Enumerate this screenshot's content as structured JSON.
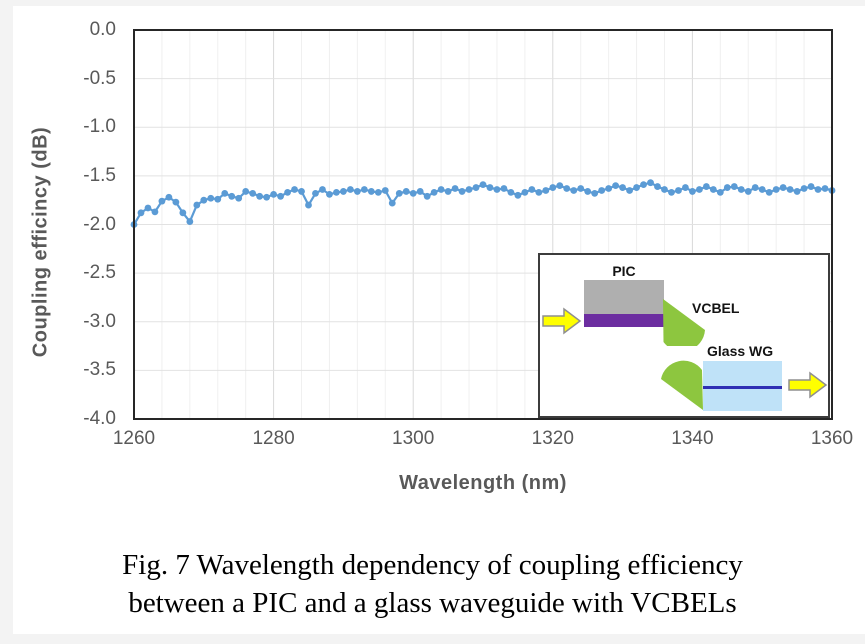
{
  "caption": {
    "line1": "Fig. 7 Wavelength dependency of coupling efficiency",
    "line2": "between a PIC and a glass waveguide with VCBELs"
  },
  "chart_data": {
    "type": "line",
    "title": "",
    "xlabel": "Wavelength (nm)",
    "ylabel": "Coupling efficincy (dB)",
    "xlim": [
      1260,
      1360
    ],
    "ylim": [
      -4.0,
      0.0
    ],
    "x_ticks": [
      1260,
      1280,
      1300,
      1320,
      1340,
      1360
    ],
    "y_ticks": [
      "0.0",
      "-0.5",
      "-1.0",
      "-1.5",
      "-2.0",
      "-2.5",
      "-3.0",
      "-3.5",
      "-4.0"
    ],
    "grid": {
      "horizontal_step": 0.5,
      "vertical_minor_step": 4,
      "vertical_major_step": 20,
      "on": true
    },
    "legend": "none",
    "marker_color": "#5B9BD5",
    "series": [
      {
        "name": "coupling efficiency",
        "x": [
          1260,
          1261,
          1262,
          1263,
          1264,
          1265,
          1266,
          1267,
          1268,
          1269,
          1270,
          1271,
          1272,
          1273,
          1274,
          1275,
          1276,
          1277,
          1278,
          1279,
          1280,
          1281,
          1282,
          1283,
          1284,
          1285,
          1286,
          1287,
          1288,
          1289,
          1290,
          1291,
          1292,
          1293,
          1294,
          1295,
          1296,
          1297,
          1298,
          1299,
          1300,
          1301,
          1302,
          1303,
          1304,
          1305,
          1306,
          1307,
          1308,
          1309,
          1310,
          1311,
          1312,
          1313,
          1314,
          1315,
          1316,
          1317,
          1318,
          1319,
          1320,
          1321,
          1322,
          1323,
          1324,
          1325,
          1326,
          1327,
          1328,
          1329,
          1330,
          1331,
          1332,
          1333,
          1334,
          1335,
          1336,
          1337,
          1338,
          1339,
          1340,
          1341,
          1342,
          1343,
          1344,
          1345,
          1346,
          1347,
          1348,
          1349,
          1350,
          1351,
          1352,
          1353,
          1354,
          1355,
          1356,
          1357,
          1358,
          1359,
          1360
        ],
        "y": [
          -2.0,
          -1.88,
          -1.83,
          -1.87,
          -1.76,
          -1.72,
          -1.77,
          -1.88,
          -1.97,
          -1.8,
          -1.75,
          -1.73,
          -1.74,
          -1.68,
          -1.71,
          -1.73,
          -1.66,
          -1.68,
          -1.71,
          -1.72,
          -1.69,
          -1.71,
          -1.67,
          -1.64,
          -1.66,
          -1.8,
          -1.68,
          -1.64,
          -1.69,
          -1.67,
          -1.66,
          -1.64,
          -1.66,
          -1.64,
          -1.66,
          -1.67,
          -1.65,
          -1.78,
          -1.68,
          -1.66,
          -1.68,
          -1.66,
          -1.71,
          -1.67,
          -1.64,
          -1.66,
          -1.63,
          -1.66,
          -1.64,
          -1.62,
          -1.59,
          -1.62,
          -1.64,
          -1.63,
          -1.67,
          -1.7,
          -1.67,
          -1.64,
          -1.67,
          -1.65,
          -1.62,
          -1.6,
          -1.63,
          -1.65,
          -1.63,
          -1.66,
          -1.68,
          -1.65,
          -1.63,
          -1.6,
          -1.62,
          -1.65,
          -1.62,
          -1.59,
          -1.57,
          -1.61,
          -1.64,
          -1.67,
          -1.65,
          -1.62,
          -1.66,
          -1.64,
          -1.61,
          -1.64,
          -1.67,
          -1.62,
          -1.61,
          -1.64,
          -1.66,
          -1.62,
          -1.64,
          -1.67,
          -1.64,
          -1.62,
          -1.64,
          -1.66,
          -1.63,
          -1.61,
          -1.64,
          -1.63,
          -1.65
        ]
      }
    ],
    "colors": {
      "series_blue": "#5B9BD5",
      "axis_text": "#595959",
      "plot_border": "#262626",
      "grid_horizontal": "#e2e2e2",
      "grid_vertical_minor": "#f0f0f0",
      "grid_vertical_major": "#d9d9d9"
    }
  },
  "inset": {
    "labels": {
      "pic": "PIC",
      "vcbel": "VCBEL",
      "glass_wg": "Glass WG"
    },
    "colors": {
      "pic_body": "#afafaf",
      "pic_waveguide": "#6c2da0",
      "lens": "#8dc63f",
      "glass_body": "#bfe2f8",
      "glass_core": "#2f2fb4",
      "arrow_fill": "#ffff00"
    }
  }
}
